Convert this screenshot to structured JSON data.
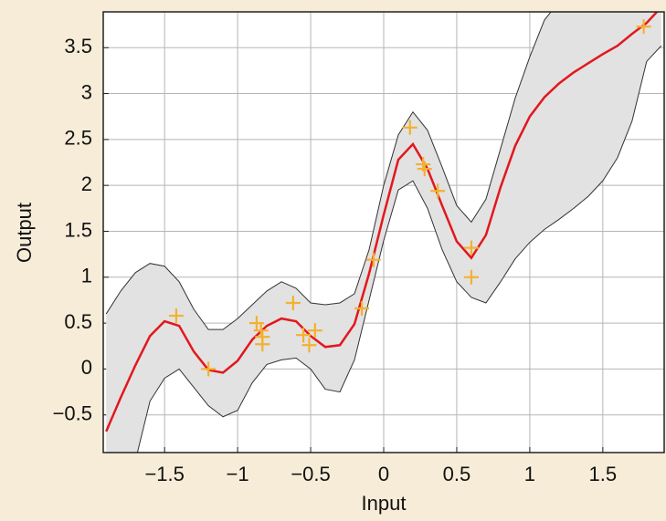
{
  "chart_data": {
    "type": "line",
    "x_label": "Input",
    "y_label": "Output",
    "xlim": [
      -1.92,
      1.92
    ],
    "ylim": [
      -0.91,
      3.89
    ],
    "xticks": [
      {
        "value": -1.5,
        "label": "−1.5"
      },
      {
        "value": -1,
        "label": "−1"
      },
      {
        "value": -0.5,
        "label": "−0.5"
      },
      0,
      0.5,
      1,
      1.5
    ],
    "yticks": [
      {
        "value": -0.5,
        "label": "−0.5"
      },
      0,
      0.5,
      1,
      1.5,
      2,
      2.5,
      3,
      3.5
    ],
    "grid": true,
    "x": [
      -1.9,
      -1.8,
      -1.7,
      -1.6,
      -1.5,
      -1.4,
      -1.3,
      -1.2,
      -1.1,
      -1.0,
      -0.9,
      -0.8,
      -0.7,
      -0.6,
      -0.5,
      -0.4,
      -0.3,
      -0.2,
      -0.1,
      0.0,
      0.1,
      0.2,
      0.3,
      0.4,
      0.5,
      0.6,
      0.7,
      0.8,
      0.9,
      1.0,
      1.1,
      1.2,
      1.3,
      1.4,
      1.5,
      1.6,
      1.7,
      1.8,
      1.9
    ],
    "mean": {
      "color": "#e3171e",
      "values": [
        -0.68,
        -0.31,
        0.04,
        0.36,
        0.52,
        0.47,
        0.19,
        -0.01,
        -0.04,
        0.09,
        0.32,
        0.47,
        0.55,
        0.52,
        0.36,
        0.24,
        0.26,
        0.49,
        1.04,
        1.68,
        2.28,
        2.45,
        2.18,
        1.78,
        1.39,
        1.21,
        1.46,
        1.98,
        2.43,
        2.75,
        2.96,
        3.11,
        3.23,
        3.33,
        3.43,
        3.52,
        3.65,
        3.77,
        3.94
      ]
    },
    "band": {
      "color": "#e2e2e2",
      "upper": [
        0.6,
        0.85,
        1.05,
        1.15,
        1.12,
        0.95,
        0.65,
        0.43,
        0.43,
        0.55,
        0.7,
        0.85,
        0.95,
        0.88,
        0.72,
        0.7,
        0.72,
        0.82,
        1.3,
        2.0,
        2.55,
        2.8,
        2.6,
        2.2,
        1.78,
        1.6,
        1.85,
        2.4,
        2.95,
        3.4,
        3.8,
        4.0,
        4.2,
        4.3,
        4.4,
        4.5,
        4.6,
        4.6,
        4.7
      ],
      "lower": [
        -1.5,
        -1.3,
        -1.0,
        -0.35,
        -0.1,
        0.0,
        -0.2,
        -0.4,
        -0.52,
        -0.45,
        -0.15,
        0.05,
        0.1,
        0.12,
        0.0,
        -0.22,
        -0.25,
        0.1,
        0.75,
        1.4,
        1.95,
        2.05,
        1.75,
        1.3,
        0.95,
        0.78,
        0.72,
        0.95,
        1.2,
        1.38,
        1.52,
        1.63,
        1.75,
        1.88,
        2.05,
        2.3,
        2.7,
        3.35,
        3.52
      ]
    },
    "points": {
      "color": "#f3b12f",
      "x": [
        -1.42,
        -1.2,
        -0.87,
        -0.84,
        -0.83,
        -0.83,
        -0.62,
        -0.55,
        -0.51,
        -0.47,
        -0.15,
        -0.07,
        0.18,
        0.27,
        0.28,
        0.37,
        0.6,
        0.6,
        1.78
      ],
      "y": [
        0.58,
        0.0,
        0.5,
        0.42,
        0.35,
        0.27,
        0.72,
        0.37,
        0.26,
        0.42,
        0.66,
        1.19,
        2.63,
        2.23,
        2.18,
        1.94,
        1.32,
        1.0,
        3.73
      ]
    }
  }
}
